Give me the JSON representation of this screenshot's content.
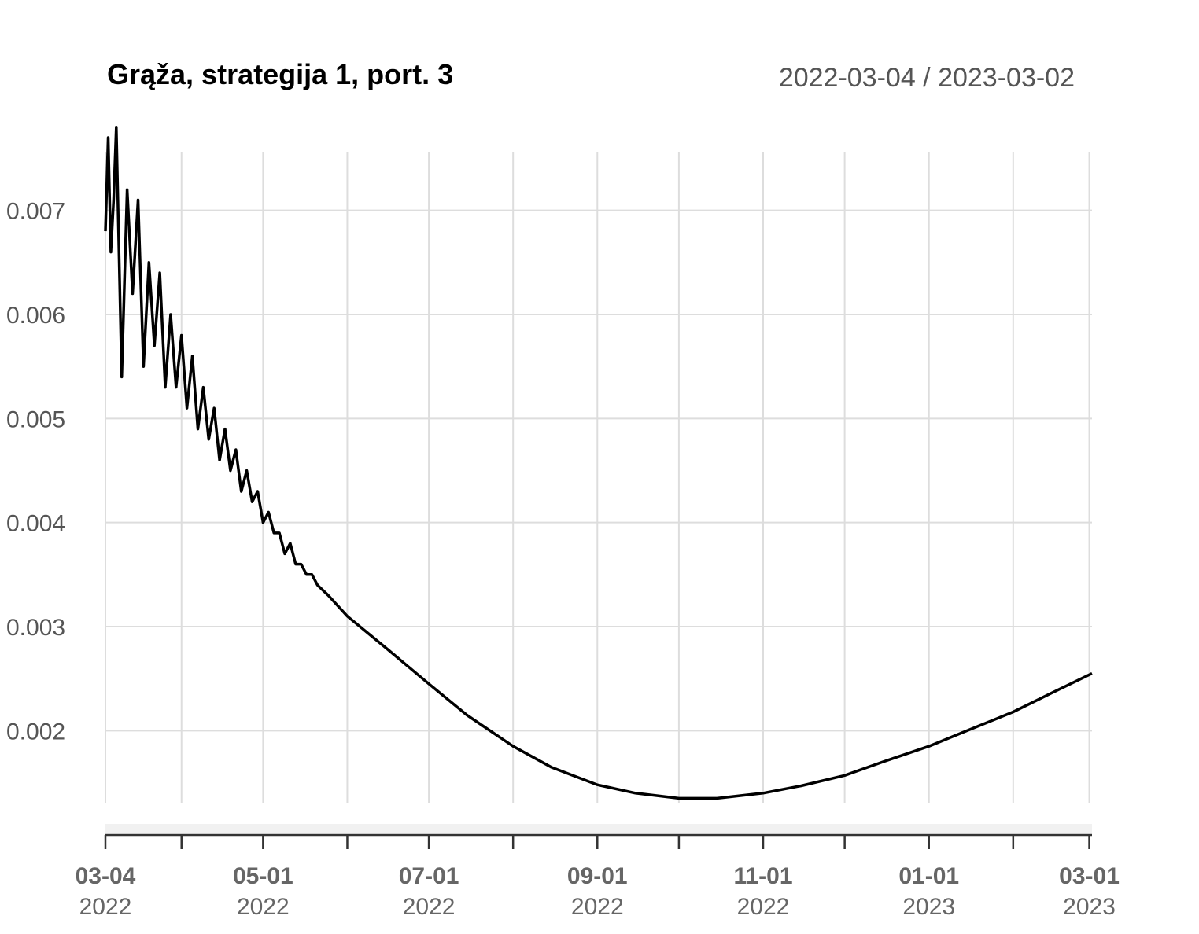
{
  "chart_data": {
    "type": "line",
    "title": "Grąža, strategija 1, port. 3",
    "date_range": "2022-03-04 / 2023-03-02",
    "xlabel": "",
    "ylabel": "",
    "x_range": [
      "2022-03-04",
      "2023-03-02"
    ],
    "ylim": [
      0.0013,
      0.0077
    ],
    "grid": true,
    "y_ticks": [
      {
        "value": 0.002,
        "label": "0.002"
      },
      {
        "value": 0.003,
        "label": "0.003"
      },
      {
        "value": 0.004,
        "label": "0.004"
      },
      {
        "value": 0.005,
        "label": "0.005"
      },
      {
        "value": 0.006,
        "label": "0.006"
      },
      {
        "value": 0.007,
        "label": "0.007"
      }
    ],
    "x_tick_labels": [
      {
        "date": "2022-03-04",
        "top": "03-04",
        "bottom": "2022"
      },
      {
        "date": "2022-05-01",
        "top": "05-01",
        "bottom": "2022"
      },
      {
        "date": "2022-07-01",
        "top": "07-01",
        "bottom": "2022"
      },
      {
        "date": "2022-09-01",
        "top": "09-01",
        "bottom": "2022"
      },
      {
        "date": "2022-11-01",
        "top": "11-01",
        "bottom": "2022"
      },
      {
        "date": "2023-01-01",
        "top": "01-01",
        "bottom": "2023"
      },
      {
        "date": "2023-03-01",
        "top": "03-01",
        "bottom": "2023"
      }
    ],
    "x_gridlines": [
      "2022-03-04",
      "2022-04-01",
      "2022-05-01",
      "2022-06-01",
      "2022-07-01",
      "2022-08-01",
      "2022-09-01",
      "2022-10-01",
      "2022-11-01",
      "2022-12-01",
      "2023-01-01",
      "2023-02-01",
      "2023-03-01"
    ],
    "series": [
      {
        "color": "#000000",
        "points": [
          [
            "2022-03-04",
            0.0068
          ],
          [
            "2022-03-05",
            0.0077
          ],
          [
            "2022-03-06",
            0.0066
          ],
          [
            "2022-03-07",
            0.0071
          ],
          [
            "2022-03-08",
            0.0078
          ],
          [
            "2022-03-10",
            0.0054
          ],
          [
            "2022-03-12",
            0.0072
          ],
          [
            "2022-03-14",
            0.0062
          ],
          [
            "2022-03-16",
            0.0071
          ],
          [
            "2022-03-18",
            0.0055
          ],
          [
            "2022-03-20",
            0.0065
          ],
          [
            "2022-03-22",
            0.0057
          ],
          [
            "2022-03-24",
            0.0064
          ],
          [
            "2022-03-26",
            0.0053
          ],
          [
            "2022-03-28",
            0.006
          ],
          [
            "2022-03-30",
            0.0053
          ],
          [
            "2022-04-01",
            0.0058
          ],
          [
            "2022-04-03",
            0.0051
          ],
          [
            "2022-04-05",
            0.0056
          ],
          [
            "2022-04-07",
            0.0049
          ],
          [
            "2022-04-09",
            0.0053
          ],
          [
            "2022-04-11",
            0.0048
          ],
          [
            "2022-04-13",
            0.0051
          ],
          [
            "2022-04-15",
            0.0046
          ],
          [
            "2022-04-17",
            0.0049
          ],
          [
            "2022-04-19",
            0.0045
          ],
          [
            "2022-04-21",
            0.0047
          ],
          [
            "2022-04-23",
            0.0043
          ],
          [
            "2022-04-25",
            0.0045
          ],
          [
            "2022-04-27",
            0.0042
          ],
          [
            "2022-04-29",
            0.0043
          ],
          [
            "2022-05-01",
            0.004
          ],
          [
            "2022-05-03",
            0.0041
          ],
          [
            "2022-05-05",
            0.0039
          ],
          [
            "2022-05-07",
            0.0039
          ],
          [
            "2022-05-09",
            0.0037
          ],
          [
            "2022-05-11",
            0.0038
          ],
          [
            "2022-05-13",
            0.0036
          ],
          [
            "2022-05-15",
            0.0036
          ],
          [
            "2022-05-17",
            0.0035
          ],
          [
            "2022-05-19",
            0.0035
          ],
          [
            "2022-05-21",
            0.0034
          ],
          [
            "2022-05-25",
            0.0033
          ],
          [
            "2022-06-01",
            0.0031
          ],
          [
            "2022-06-15",
            0.0028
          ],
          [
            "2022-07-01",
            0.00245
          ],
          [
            "2022-07-15",
            0.00215
          ],
          [
            "2022-08-01",
            0.00185
          ],
          [
            "2022-08-15",
            0.00165
          ],
          [
            "2022-09-01",
            0.00148
          ],
          [
            "2022-09-15",
            0.0014
          ],
          [
            "2022-10-01",
            0.00135
          ],
          [
            "2022-10-15",
            0.00135
          ],
          [
            "2022-11-01",
            0.0014
          ],
          [
            "2022-11-15",
            0.00147
          ],
          [
            "2022-12-01",
            0.00157
          ],
          [
            "2022-12-15",
            0.0017
          ],
          [
            "2023-01-01",
            0.00185
          ],
          [
            "2023-01-15",
            0.002
          ],
          [
            "2023-02-01",
            0.00218
          ],
          [
            "2023-02-15",
            0.00236
          ],
          [
            "2023-03-02",
            0.00255
          ]
        ]
      }
    ]
  }
}
